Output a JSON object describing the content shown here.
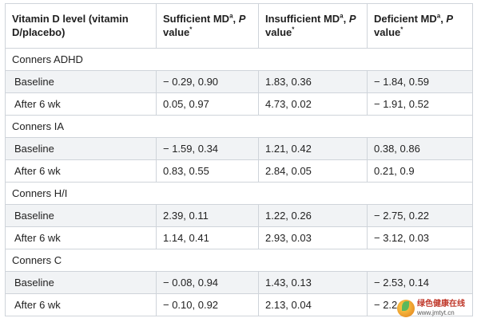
{
  "header": {
    "col1": "Vitamin D level (vitamin D/placebo)",
    "col2_main": "Sufficient MD",
    "col2_sup": "a",
    "col2_sep": ", ",
    "col2_p": "P",
    "col2_tail": " value",
    "col2_star": "*",
    "col3_main": "Insufficient MD",
    "col3_sup": "a",
    "col3_sep": ", ",
    "col3_p": "P",
    "col3_tail": " value",
    "col3_star": "*",
    "col4_main": "Deficient MD",
    "col4_sup": "a",
    "col4_sep": ", ",
    "col4_p": "P",
    "col4_tail": " value",
    "col4_star": "*"
  },
  "groups": [
    {
      "title": "Conners ADHD",
      "rows": [
        {
          "label": "Baseline",
          "sufficient": "− 0.29, 0.90",
          "insufficient": "1.83, 0.36",
          "deficient": "− 1.84, 0.59"
        },
        {
          "label": "After 6 wk",
          "sufficient": "0.05, 0.97",
          "insufficient": "4.73, 0.02",
          "deficient": "− 1.91, 0.52"
        }
      ]
    },
    {
      "title": "Conners IA",
      "rows": [
        {
          "label": "Baseline",
          "sufficient": "− 1.59, 0.34",
          "insufficient": "1.21, 0.42",
          "deficient": "0.38, 0.86"
        },
        {
          "label": "After 6 wk",
          "sufficient": "0.83, 0.55",
          "insufficient": "2.84, 0.05",
          "deficient": "0.21, 0.9"
        }
      ]
    },
    {
      "title": "Conners H/I",
      "rows": [
        {
          "label": "Baseline",
          "sufficient": "2.39, 0.11",
          "insufficient": "1.22, 0.26",
          "deficient": "− 2.75, 0.22"
        },
        {
          "label": "After 6 wk",
          "sufficient": "1.14, 0.41",
          "insufficient": "2.93, 0.03",
          "deficient": "− 3.12, 0.03"
        }
      ]
    },
    {
      "title": "Conners C",
      "rows": [
        {
          "label": "Baseline",
          "sufficient": "− 0.08, 0.94",
          "insufficient": "1.43, 0.13",
          "deficient": "− 2.53, 0.14"
        },
        {
          "label": "After 6 wk",
          "sufficient": "− 0.10, 0.92",
          "insufficient": "2.13, 0.04",
          "deficient": "− 2.2"
        }
      ]
    }
  ],
  "watermark": {
    "cn": "绿色健康在线",
    "url": "www.jmtyt.cn"
  }
}
